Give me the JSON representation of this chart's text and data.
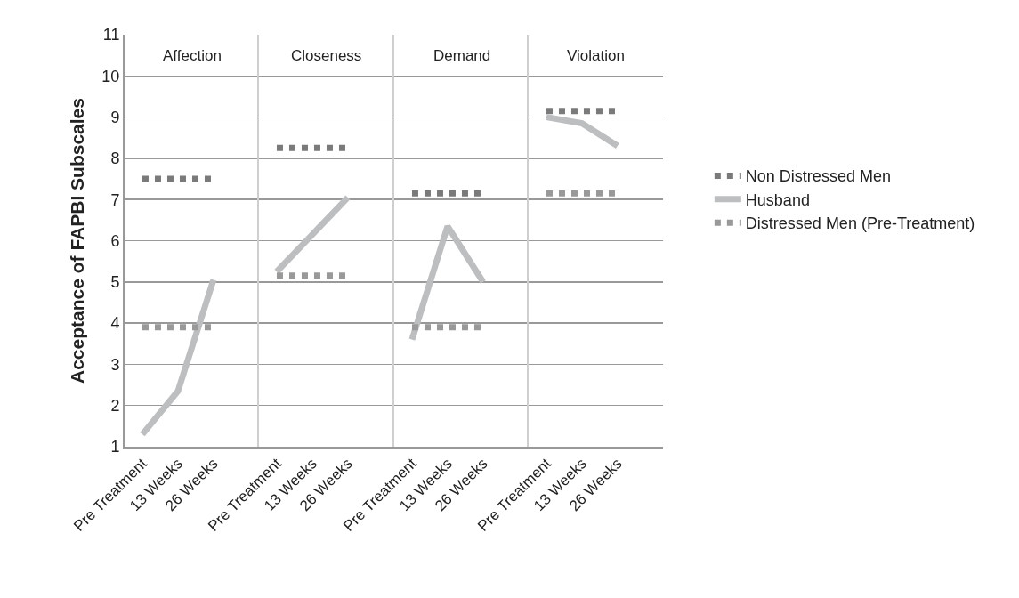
{
  "chart_data": [
    {
      "type": "line",
      "title": "Affection",
      "ylabel": "Acceptance of FAPBI Subscales",
      "categories": [
        "Pre Treatment",
        "13 Weeks",
        "26 Weeks"
      ],
      "series": [
        {
          "color": "#7a7a7a",
          "line_style": "dotted",
          "values": [
            7.5,
            7.5,
            7.5
          ]
        },
        {
          "color": "#bdbec0",
          "line_style": "solid",
          "values": [
            1.3,
            2.35,
            5.05
          ]
        },
        {
          "color": "#999999",
          "line_style": "dotted",
          "values": [
            3.9,
            3.9,
            3.9
          ]
        }
      ],
      "ylim": [
        1,
        11
      ],
      "yticks": [
        1,
        2,
        3,
        4,
        5,
        6,
        7,
        8,
        9,
        10,
        11
      ],
      "grid": "y",
      "marker": "none"
    },
    {
      "type": "line",
      "title": "Closeness",
      "categories": [
        "Pre Treatment",
        "13 Weeks",
        "26 Weeks"
      ],
      "series": [
        {
          "color": "#7a7a7a",
          "line_style": "dotted",
          "values": [
            8.25,
            8.25,
            8.25
          ]
        },
        {
          "color": "#bdbec0",
          "line_style": "solid",
          "values": [
            5.25,
            6.15,
            7.05
          ]
        },
        {
          "color": "#999999",
          "line_style": "dotted",
          "values": [
            5.15,
            5.15,
            5.15
          ]
        }
      ],
      "ylim": [
        1,
        11
      ],
      "yticks": [
        1,
        2,
        3,
        4,
        5,
        6,
        7,
        8,
        9,
        10,
        11
      ],
      "grid": "y",
      "marker": "none",
      "tick_labels": "x"
    },
    {
      "type": "line",
      "title": "Demand",
      "categories": [
        "Pre Treatment",
        "13 Weeks",
        "26 Weeks"
      ],
      "series": [
        {
          "color": "#7a7a7a",
          "line_style": "dotted",
          "values": [
            7.15,
            7.15,
            7.15
          ]
        },
        {
          "color": "#bdbec0",
          "line_style": "solid",
          "values": [
            3.6,
            6.35,
            5.0
          ]
        },
        {
          "color": "#999999",
          "line_style": "dotted",
          "values": [
            3.9,
            3.9,
            3.9
          ]
        }
      ],
      "ylim": [
        1,
        11
      ],
      "yticks": [
        1,
        2,
        3,
        4,
        5,
        6,
        7,
        8,
        9,
        10,
        11
      ],
      "grid": "y",
      "marker": "none",
      "tick_labels": "x"
    },
    {
      "type": "line",
      "title": "Violation",
      "categories": [
        "Pre Treatment",
        "13 Weeks",
        "26 Weeks"
      ],
      "series": [
        {
          "name": "Non Distressed Men",
          "color": "#7a7a7a",
          "line_style": "dotted",
          "values": [
            9.15,
            9.15,
            9.15
          ]
        },
        {
          "name": "Husband",
          "color": "#bdbec0",
          "line_style": "solid",
          "values": [
            9.0,
            8.85,
            8.3
          ]
        },
        {
          "name": "Distressed Men (Pre-Treatment)",
          "color": "#999999",
          "line_style": "dotted",
          "values": [
            7.15,
            7.15,
            7.15
          ]
        }
      ],
      "ylim": [
        1,
        11
      ],
      "yticks": [
        1,
        2,
        3,
        4,
        5,
        6,
        7,
        8,
        9,
        10,
        11
      ],
      "grid": "y",
      "marker": "none",
      "tick_labels": "x",
      "legend": "right"
    }
  ]
}
